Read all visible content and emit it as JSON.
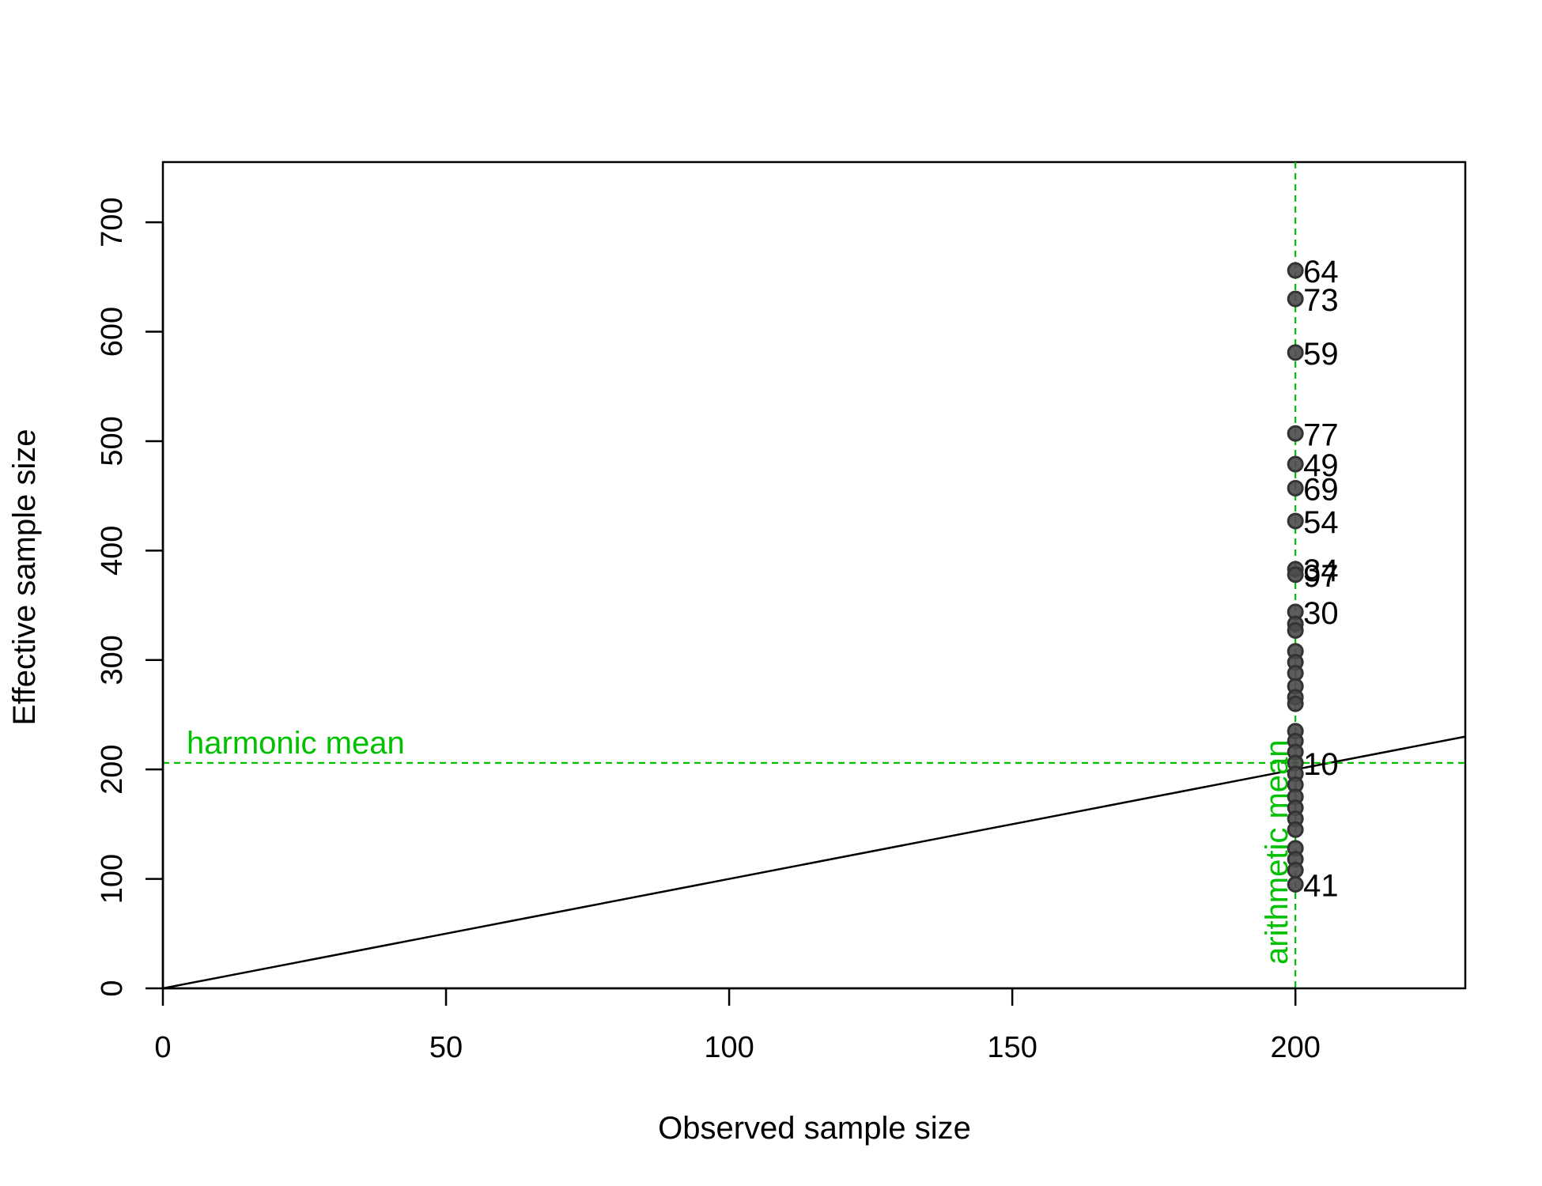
{
  "chart_data": {
    "type": "scatter",
    "xlabel": "Observed sample size",
    "ylabel": "Effective sample size",
    "xlim": [
      0,
      230
    ],
    "ylim": [
      0,
      755
    ],
    "x_ticks": [
      "0",
      "50",
      "100",
      "150",
      "200"
    ],
    "y_ticks": [
      "0",
      "100",
      "200",
      "300",
      "400",
      "500",
      "600",
      "700"
    ],
    "grid": false,
    "point_color": "#333333",
    "point_fill": "#4a4a4a",
    "reference_color": "#00c000",
    "identity_line": {
      "slope": 1,
      "intercept": 0
    },
    "harmonic_mean": {
      "label": "harmonic mean",
      "y": 206
    },
    "arithmetic_mean": {
      "label": "arithmetic mean",
      "x": 200
    },
    "points": [
      {
        "label": "64",
        "x": 200,
        "y": 656
      },
      {
        "label": "73",
        "x": 200,
        "y": 630
      },
      {
        "label": "59",
        "x": 200,
        "y": 581
      },
      {
        "label": "77",
        "x": 200,
        "y": 507
      },
      {
        "label": "49",
        "x": 200,
        "y": 479
      },
      {
        "label": "69",
        "x": 200,
        "y": 457
      },
      {
        "label": "54",
        "x": 200,
        "y": 427
      },
      {
        "label": "34",
        "x": 200,
        "y": 383
      },
      {
        "label": "97",
        "x": 200,
        "y": 378
      },
      {
        "label": "30",
        "x": 200,
        "y": 344
      },
      {
        "label": "",
        "x": 200,
        "y": 333
      },
      {
        "label": "",
        "x": 200,
        "y": 327
      },
      {
        "label": "",
        "x": 200,
        "y": 308
      },
      {
        "label": "",
        "x": 200,
        "y": 298
      },
      {
        "label": "",
        "x": 200,
        "y": 288
      },
      {
        "label": "",
        "x": 200,
        "y": 276
      },
      {
        "label": "",
        "x": 200,
        "y": 266
      },
      {
        "label": "",
        "x": 200,
        "y": 260
      },
      {
        "label": "",
        "x": 200,
        "y": 235
      },
      {
        "label": "",
        "x": 200,
        "y": 226
      },
      {
        "label": "",
        "x": 200,
        "y": 216
      },
      {
        "label": "10",
        "x": 200,
        "y": 206
      },
      {
        "label": "",
        "x": 200,
        "y": 196
      },
      {
        "label": "",
        "x": 200,
        "y": 186
      },
      {
        "label": "",
        "x": 200,
        "y": 175
      },
      {
        "label": "",
        "x": 200,
        "y": 165
      },
      {
        "label": "",
        "x": 200,
        "y": 155
      },
      {
        "label": "",
        "x": 200,
        "y": 145
      },
      {
        "label": "",
        "x": 200,
        "y": 128
      },
      {
        "label": "",
        "x": 200,
        "y": 118
      },
      {
        "label": "",
        "x": 200,
        "y": 108
      },
      {
        "label": "41",
        "x": 200,
        "y": 95
      }
    ]
  }
}
